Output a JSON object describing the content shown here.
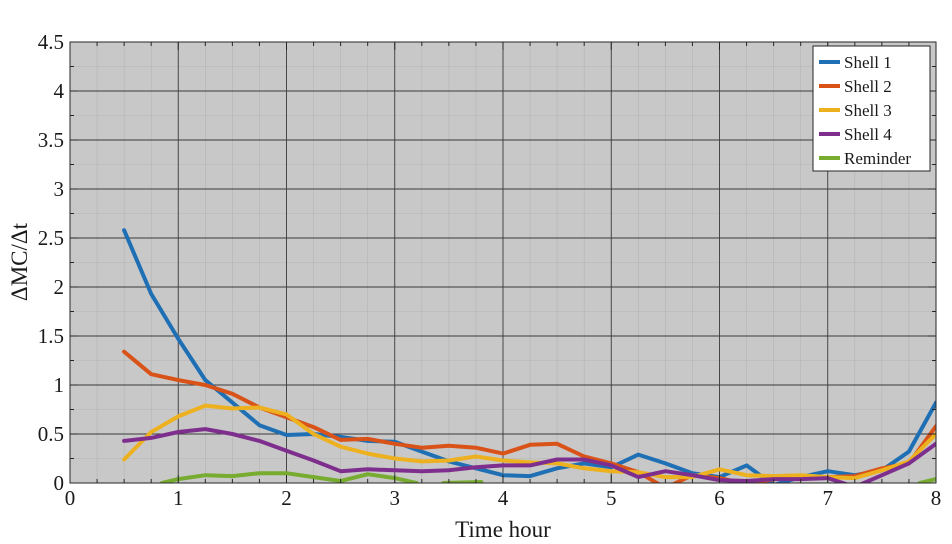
{
  "chart_data": {
    "type": "line",
    "xlabel": "Time hour",
    "ylabel": "ΔMC/Δt",
    "xlim": [
      0,
      8
    ],
    "ylim": [
      0,
      4.5
    ],
    "xticks": [
      "0",
      "1",
      "2",
      "3",
      "4",
      "5",
      "6",
      "7",
      "8"
    ],
    "yticks": [
      "0",
      "0.5",
      "1",
      "1.5",
      "2",
      "2.5",
      "3",
      "3.5",
      "4",
      "4.5"
    ],
    "grid": "major and minor",
    "background": "#c8c8c8",
    "legend_position": "top-right",
    "series": [
      {
        "name": "Shell 1",
        "color": "#1f6fb4",
        "points": [
          [
            0.5,
            2.58
          ],
          [
            0.75,
            1.93
          ],
          [
            1.0,
            1.47
          ],
          [
            1.25,
            1.05
          ],
          [
            1.5,
            0.82
          ],
          [
            1.75,
            0.59
          ],
          [
            2.0,
            0.49
          ],
          [
            2.25,
            0.5
          ],
          [
            2.5,
            0.47
          ],
          [
            2.75,
            0.43
          ],
          [
            3.0,
            0.42
          ],
          [
            3.25,
            0.32
          ],
          [
            3.5,
            0.22
          ],
          [
            3.75,
            0.15
          ],
          [
            4.0,
            0.08
          ],
          [
            4.25,
            0.07
          ],
          [
            4.5,
            0.15
          ],
          [
            4.75,
            0.2
          ],
          [
            5.0,
            0.16
          ],
          [
            5.25,
            0.29
          ],
          [
            5.5,
            0.2
          ],
          [
            5.75,
            0.1
          ],
          [
            6.0,
            0.06
          ],
          [
            6.25,
            0.18
          ],
          [
            6.5,
            -0.02
          ],
          [
            6.75,
            0.06
          ],
          [
            7.0,
            0.12
          ],
          [
            7.25,
            0.08
          ],
          [
            7.5,
            0.13
          ],
          [
            7.75,
            0.32
          ],
          [
            8.0,
            0.82
          ]
        ]
      },
      {
        "name": "Shell 2",
        "color": "#d95319",
        "points": [
          [
            0.5,
            1.34
          ],
          [
            0.75,
            1.11
          ],
          [
            1.0,
            1.05
          ],
          [
            1.25,
            1.0
          ],
          [
            1.5,
            0.91
          ],
          [
            1.75,
            0.77
          ],
          [
            2.0,
            0.67
          ],
          [
            2.25,
            0.57
          ],
          [
            2.5,
            0.44
          ],
          [
            2.75,
            0.45
          ],
          [
            3.0,
            0.4
          ],
          [
            3.25,
            0.36
          ],
          [
            3.5,
            0.38
          ],
          [
            3.75,
            0.36
          ],
          [
            4.0,
            0.3
          ],
          [
            4.25,
            0.39
          ],
          [
            4.5,
            0.4
          ],
          [
            4.75,
            0.27
          ],
          [
            5.0,
            0.2
          ],
          [
            5.25,
            0.11
          ],
          [
            5.5,
            -0.05
          ],
          [
            5.75,
            0.08
          ],
          [
            6.0,
            0.05
          ],
          [
            6.25,
            -0.01
          ],
          [
            6.5,
            0.04
          ],
          [
            6.75,
            0.05
          ],
          [
            7.0,
            0.06
          ],
          [
            7.25,
            0.07
          ],
          [
            7.5,
            0.15
          ],
          [
            7.75,
            0.2
          ],
          [
            8.0,
            0.58
          ]
        ]
      },
      {
        "name": "Shell 3",
        "color": "#edb120",
        "points": [
          [
            0.5,
            0.24
          ],
          [
            0.75,
            0.52
          ],
          [
            1.0,
            0.68
          ],
          [
            1.25,
            0.79
          ],
          [
            1.5,
            0.76
          ],
          [
            1.75,
            0.77
          ],
          [
            2.0,
            0.7
          ],
          [
            2.25,
            0.5
          ],
          [
            2.5,
            0.37
          ],
          [
            2.75,
            0.3
          ],
          [
            3.0,
            0.25
          ],
          [
            3.25,
            0.22
          ],
          [
            3.5,
            0.23
          ],
          [
            3.75,
            0.27
          ],
          [
            4.0,
            0.23
          ],
          [
            4.25,
            0.21
          ],
          [
            4.5,
            0.2
          ],
          [
            4.75,
            0.15
          ],
          [
            5.0,
            0.12
          ],
          [
            5.25,
            0.11
          ],
          [
            5.5,
            0.06
          ],
          [
            5.75,
            0.06
          ],
          [
            6.0,
            0.14
          ],
          [
            6.25,
            0.08
          ],
          [
            6.5,
            0.07
          ],
          [
            6.75,
            0.08
          ],
          [
            7.0,
            0.06
          ],
          [
            7.25,
            0.05
          ],
          [
            7.5,
            0.13
          ],
          [
            7.75,
            0.22
          ],
          [
            8.0,
            0.5
          ]
        ]
      },
      {
        "name": "Shell 4",
        "color": "#7e2f8e",
        "points": [
          [
            0.5,
            0.43
          ],
          [
            0.75,
            0.46
          ],
          [
            1.0,
            0.52
          ],
          [
            1.25,
            0.55
          ],
          [
            1.5,
            0.5
          ],
          [
            1.75,
            0.43
          ],
          [
            2.0,
            0.33
          ],
          [
            2.25,
            0.23
          ],
          [
            2.5,
            0.12
          ],
          [
            2.75,
            0.14
          ],
          [
            3.0,
            0.13
          ],
          [
            3.25,
            0.12
          ],
          [
            3.5,
            0.13
          ],
          [
            3.75,
            0.16
          ],
          [
            4.0,
            0.18
          ],
          [
            4.25,
            0.18
          ],
          [
            4.5,
            0.24
          ],
          [
            4.75,
            0.24
          ],
          [
            5.0,
            0.18
          ],
          [
            5.25,
            0.06
          ],
          [
            5.5,
            0.12
          ],
          [
            5.75,
            0.08
          ],
          [
            6.0,
            0.03
          ],
          [
            6.25,
            0.02
          ],
          [
            6.5,
            0.04
          ],
          [
            6.75,
            0.04
          ],
          [
            7.0,
            0.05
          ],
          [
            7.25,
            -0.04
          ],
          [
            7.5,
            0.08
          ],
          [
            7.75,
            0.2
          ],
          [
            8.0,
            0.4
          ]
        ]
      },
      {
        "name": "Reminder",
        "color": "#77ac30",
        "segments": [
          [
            [
              0.85,
              0.0
            ],
            [
              1.0,
              0.04
            ],
            [
              1.25,
              0.08
            ],
            [
              1.5,
              0.07
            ],
            [
              1.75,
              0.1
            ],
            [
              2.0,
              0.1
            ],
            [
              2.25,
              0.06
            ],
            [
              2.5,
              0.02
            ],
            [
              2.75,
              0.09
            ],
            [
              3.0,
              0.05
            ],
            [
              3.2,
              0.0
            ]
          ],
          [
            [
              3.45,
              0.0
            ],
            [
              3.8,
              0.01
            ]
          ],
          [
            [
              7.85,
              0.0
            ],
            [
              8.0,
              0.04
            ]
          ]
        ]
      }
    ]
  }
}
